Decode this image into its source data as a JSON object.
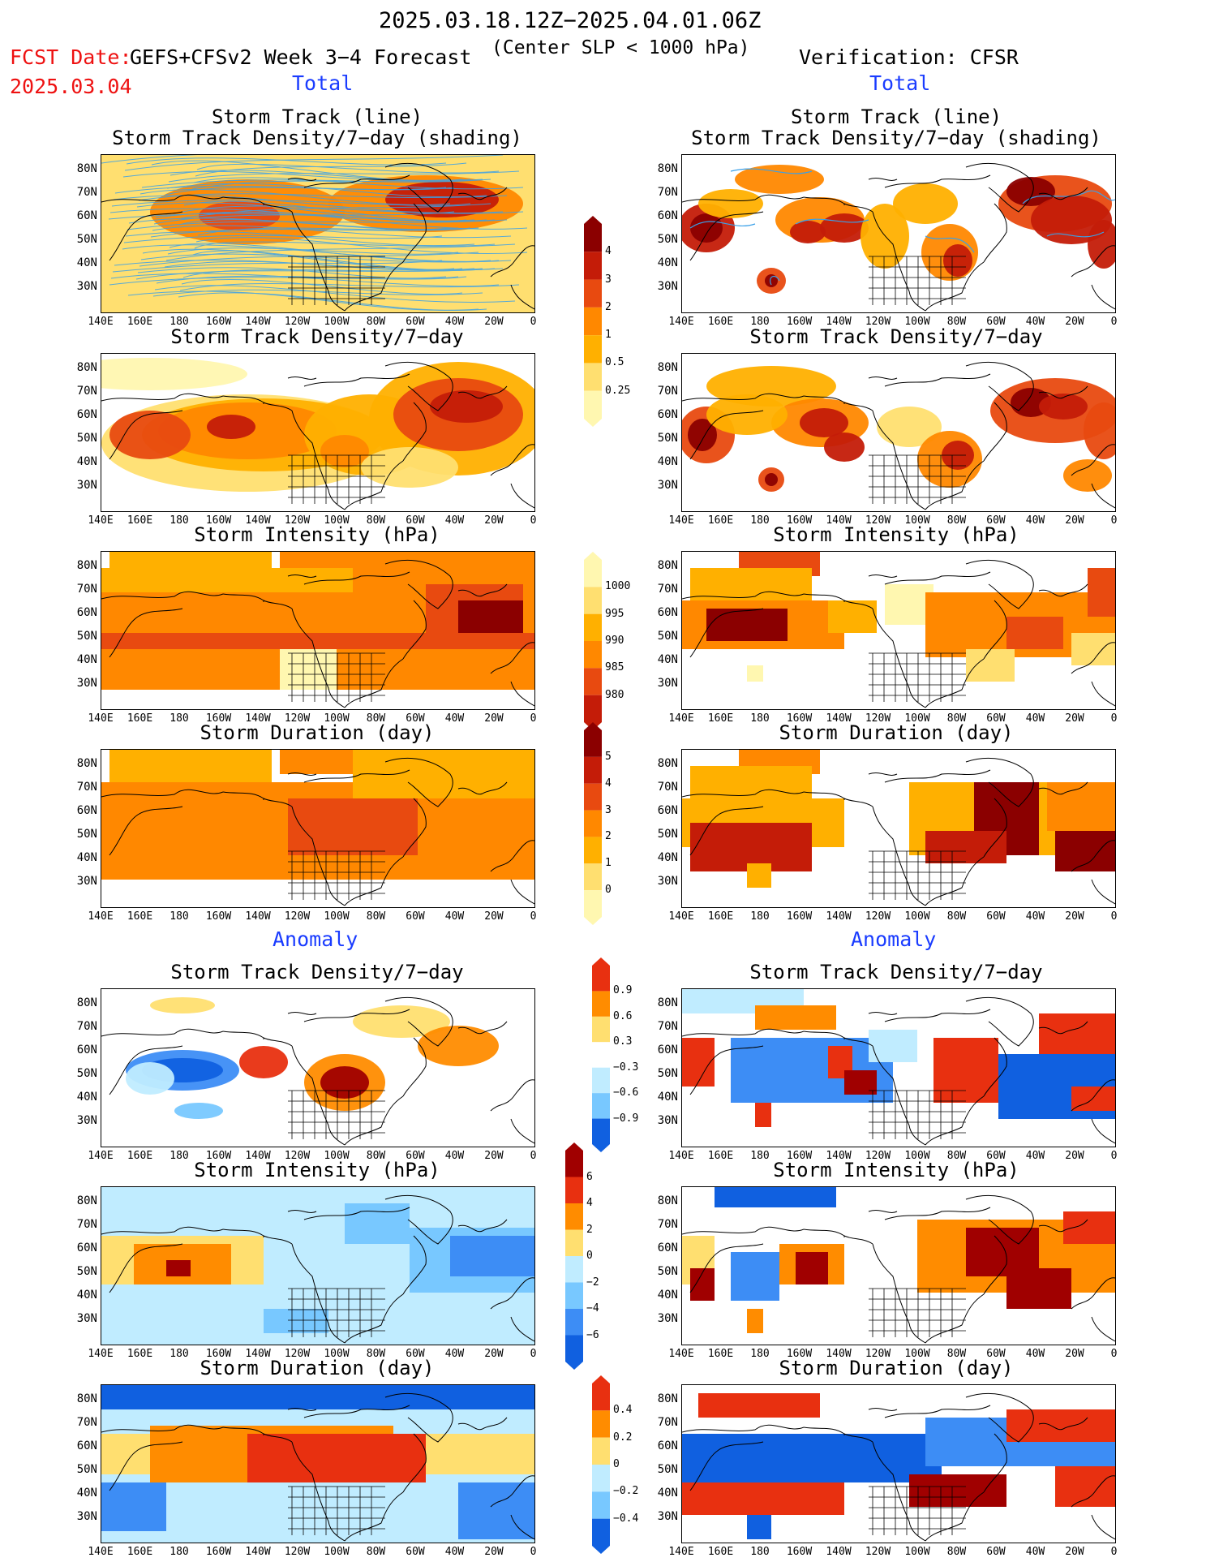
{
  "header": {
    "date_range": "2025.03.18.12Z−2025.04.01.06Z",
    "fcst_label": "FCST Date:",
    "model": "GEFS+CFSv2 Week 3−4 Forecast",
    "fcst_date": "2025.03.04",
    "criteria": "(Center SLP < 1000 hPa)",
    "verification": "Verification: CFSR"
  },
  "sections": {
    "total": "Total",
    "anomaly": "Anomaly"
  },
  "titles": {
    "track_line": "Storm Track (line)",
    "track_shading": "Storm Track Density/7−day (shading)",
    "density": "Storm Track Density/7−day",
    "intensity": "Storm Intensity (hPa)",
    "duration": "Storm Duration (day)"
  },
  "axes": {
    "lat": [
      "80N",
      "70N",
      "60N",
      "50N",
      "40N",
      "30N"
    ],
    "lon": [
      "140E",
      "160E",
      "180",
      "160W",
      "140W",
      "120W",
      "100W",
      "80W",
      "60W",
      "40W",
      "20W",
      "0"
    ]
  },
  "colorbars": {
    "density": [
      "4",
      "3",
      "2",
      "1",
      "0.5",
      "0.25"
    ],
    "intensity": [
      "1000",
      "995",
      "990",
      "985",
      "980"
    ],
    "duration": [
      "5",
      "4",
      "3",
      "2",
      "1",
      "0"
    ],
    "density_anom": [
      "0.9",
      "0.6",
      "0.3",
      "−0.3",
      "−0.6",
      "−0.9"
    ],
    "intensity_anom": [
      "6",
      "4",
      "2",
      "0",
      "−2",
      "−4",
      "−6"
    ],
    "duration_anom": [
      "0.4",
      "0.2",
      "0",
      "−0.2",
      "−0.4"
    ]
  },
  "colors": {
    "seq": [
      "#fff7b0",
      "#ffdf70",
      "#ffb000",
      "#ff8800",
      "#e84a10",
      "#c41c08",
      "#8b0000"
    ],
    "anom_pos": [
      "#ffdf70",
      "#ff8c00",
      "#e83010",
      "#a00000"
    ],
    "anom_neg": [
      "#c0ecff",
      "#78c8ff",
      "#3d8df5",
      "#1060e0"
    ],
    "track_line": "#3aa0e8"
  }
}
